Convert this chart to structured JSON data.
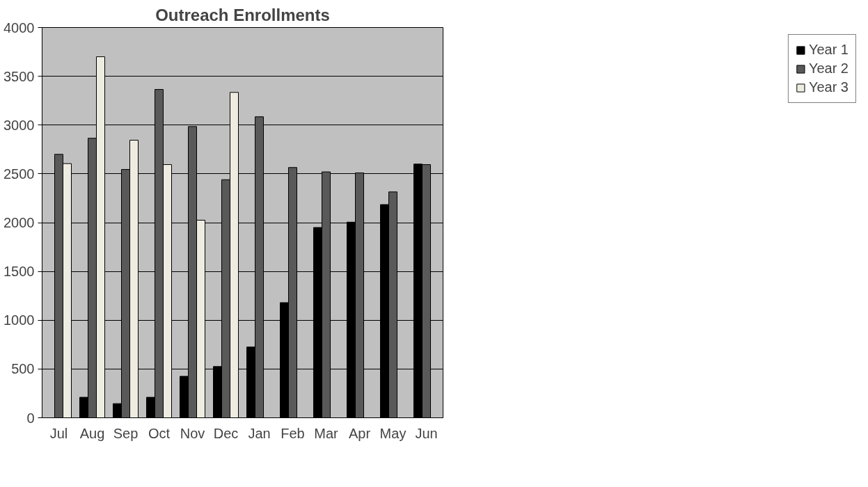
{
  "chart_data": {
    "type": "bar",
    "title": "Outreach Enrollments",
    "categories": [
      "Jul",
      "Aug",
      "Sep",
      "Oct",
      "Nov",
      "Dec",
      "Jan",
      "Feb",
      "Mar",
      "Apr",
      "May",
      "Jun"
    ],
    "series": [
      {
        "name": "Year 1",
        "color": "#000000",
        "values": [
          null,
          210,
          145,
          210,
          425,
          525,
          725,
          1180,
          1950,
          2005,
          2185,
          2600
        ]
      },
      {
        "name": "Year 2",
        "color": "#595959",
        "values": [
          2700,
          2865,
          2545,
          3365,
          2985,
          2440,
          3085,
          2565,
          2520,
          2510,
          2315,
          2595
        ]
      },
      {
        "name": "Year 3",
        "color": "#eeece1",
        "values": [
          2605,
          3700,
          2845,
          2595,
          2025,
          3335,
          null,
          null,
          null,
          null,
          null,
          null
        ]
      }
    ],
    "ylim": [
      0,
      4000
    ],
    "yticks": [
      0,
      500,
      1000,
      1500,
      2000,
      2500,
      3000,
      3500,
      4000
    ],
    "grid": "y",
    "legend": "right"
  }
}
